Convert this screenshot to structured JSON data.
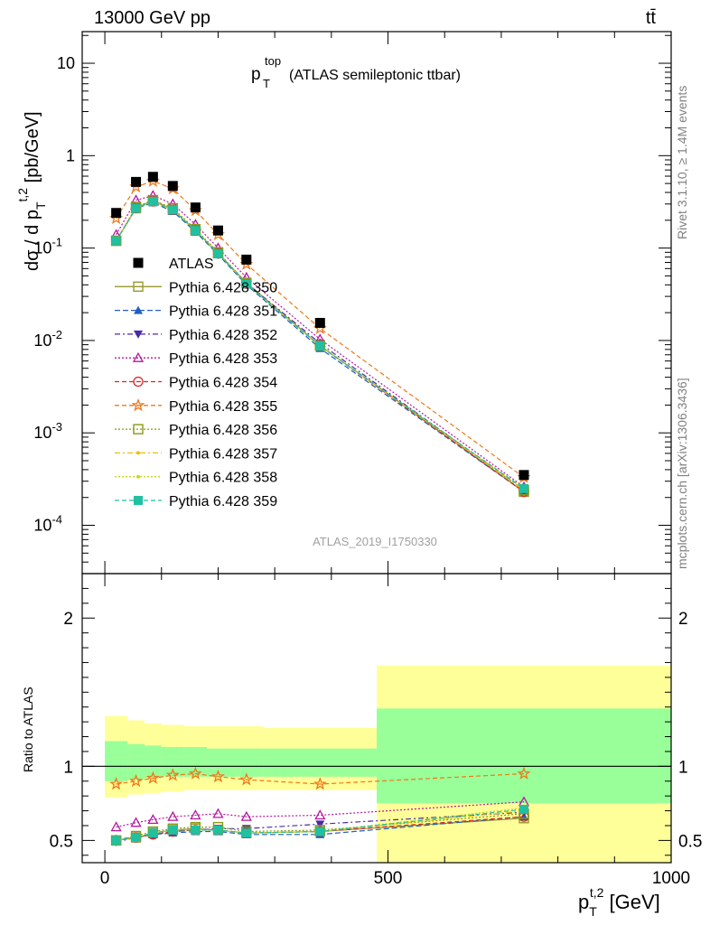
{
  "header": {
    "left": "13000 GeV pp",
    "right": "tt̄"
  },
  "side_labels": {
    "rivet": "Rivet 3.1.10, ≥ 1.4M events",
    "mcplots": "mcplots.cern.ch [arXiv:1306.3436]"
  },
  "analysis_id": "ATLAS_2019_I1750330",
  "colors": {
    "ratio_band_outer": "#ffff99",
    "ratio_band_inner": "#99ff99"
  },
  "chart_data": [
    {
      "type": "scatter",
      "name": "main",
      "title_main": "p",
      "title_sup": "top",
      "title_sub": "T",
      "title_rest": "(ATLAS semileptonic ttbar)",
      "ylabel": "dσ / d p_T^{t,2} [pb/GeV]",
      "yscale": "log",
      "ylim": [
        3e-05,
        22
      ],
      "xlim": [
        -40,
        1000
      ],
      "ytick_labels": [
        "10",
        "1",
        "10^-1",
        "10^-2",
        "10^-3",
        "10^-4"
      ],
      "legend_position": "upper-left",
      "x": [
        20,
        55,
        85,
        120,
        160,
        200,
        250,
        380,
        740
      ],
      "series": [
        {
          "name": "ATLAS",
          "color": "#000000",
          "marker": "square-filled",
          "dash": "",
          "values": [
            0.24,
            0.52,
            0.59,
            0.47,
            0.275,
            0.155,
            0.075,
            0.0155,
            0.00035
          ]
        },
        {
          "name": "Pythia 6.428 350",
          "color": "#999933",
          "marker": "square-open",
          "dash": "",
          "values": [
            0.12,
            0.27,
            0.33,
            0.26,
            0.155,
            0.088,
            0.042,
            0.0088,
            0.00023
          ]
        },
        {
          "name": "Pythia 6.428 351",
          "color": "#1f5fbf",
          "marker": "triangle-up-filled",
          "dash": "6,3",
          "values": [
            0.12,
            0.27,
            0.31,
            0.25,
            0.15,
            0.085,
            0.04,
            0.0082,
            0.00023
          ]
        },
        {
          "name": "Pythia 6.428 352",
          "color": "#4b2aa8",
          "marker": "triangle-down-filled",
          "dash": "6,3,2,3",
          "values": [
            0.12,
            0.27,
            0.32,
            0.26,
            0.155,
            0.088,
            0.042,
            0.0093,
            0.00024
          ]
        },
        {
          "name": "Pythia 6.428 353",
          "color": "#b5179e",
          "marker": "triangle-up-open",
          "dash": "2,2",
          "values": [
            0.14,
            0.33,
            0.37,
            0.3,
            0.18,
            0.1,
            0.048,
            0.0103,
            0.00026
          ]
        },
        {
          "name": "Pythia 6.428 354",
          "color": "#d62728",
          "marker": "circle-open",
          "dash": "5,3",
          "values": [
            0.12,
            0.27,
            0.32,
            0.26,
            0.155,
            0.087,
            0.041,
            0.0087,
            0.00023
          ]
        },
        {
          "name": "Pythia 6.428 355",
          "color": "#f07818",
          "marker": "star-open",
          "dash": "5,3",
          "values": [
            0.21,
            0.46,
            0.53,
            0.44,
            0.255,
            0.14,
            0.067,
            0.0135,
            0.00033
          ]
        },
        {
          "name": "Pythia 6.428 356",
          "color": "#8a9a10",
          "marker": "square-open",
          "dash": "2,2",
          "values": [
            0.12,
            0.28,
            0.33,
            0.27,
            0.16,
            0.09,
            0.042,
            0.0088,
            0.00024
          ]
        },
        {
          "name": "Pythia 6.428 357",
          "color": "#e8c010",
          "marker": "dot",
          "dash": "6,3,2,3",
          "values": [
            0.12,
            0.27,
            0.32,
            0.26,
            0.155,
            0.088,
            0.041,
            0.0087,
            0.00024
          ]
        },
        {
          "name": "Pythia 6.428 358",
          "color": "#c8d820",
          "marker": "dot",
          "dash": "2,2",
          "values": [
            0.12,
            0.27,
            0.32,
            0.26,
            0.155,
            0.088,
            0.041,
            0.0087,
            0.00025
          ]
        },
        {
          "name": "Pythia 6.428 359",
          "color": "#20c0a0",
          "marker": "square-filled",
          "dash": "5,3",
          "values": [
            0.12,
            0.27,
            0.32,
            0.26,
            0.155,
            0.087,
            0.041,
            0.0087,
            0.00025
          ]
        }
      ]
    },
    {
      "type": "line",
      "name": "ratio",
      "ylabel": "Ratio to ATLAS",
      "ylim": [
        0.35,
        2.3
      ],
      "xlim": [
        -40,
        1000
      ],
      "ytick_labels": [
        "2",
        "1",
        "0.5"
      ],
      "xtick_labels": [
        "0",
        "500",
        "1000"
      ],
      "xlabel": "p_T^{t,2} [GeV]",
      "x": [
        20,
        55,
        85,
        120,
        160,
        200,
        250,
        380,
        740
      ],
      "band": {
        "edges": [
          0,
          40,
          70,
          100,
          140,
          180,
          220,
          280,
          480,
          1000
        ],
        "outer_low": [
          0.79,
          0.81,
          0.82,
          0.83,
          0.84,
          0.84,
          0.84,
          0.84,
          0.35
        ],
        "outer_high": [
          1.34,
          1.31,
          1.29,
          1.28,
          1.27,
          1.27,
          1.27,
          1.26,
          1.68
        ],
        "inner_low": [
          0.9,
          0.91,
          0.92,
          0.93,
          0.93,
          0.93,
          0.93,
          0.93,
          0.75
        ],
        "inner_high": [
          1.17,
          1.15,
          1.14,
          1.13,
          1.13,
          1.12,
          1.12,
          1.12,
          1.39
        ]
      },
      "series": [
        {
          "name": "Pythia 6.428 350",
          "values": [
            0.5,
            0.52,
            0.55,
            0.57,
            0.58,
            0.57,
            0.55,
            0.56,
            0.65
          ]
        },
        {
          "name": "Pythia 6.428 351",
          "values": [
            0.51,
            0.52,
            0.54,
            0.55,
            0.56,
            0.56,
            0.54,
            0.54,
            0.66
          ]
        },
        {
          "name": "Pythia 6.428 352",
          "values": [
            0.49,
            0.52,
            0.54,
            0.56,
            0.57,
            0.58,
            0.58,
            0.61,
            0.69
          ]
        },
        {
          "name": "Pythia 6.428 353",
          "values": [
            0.59,
            0.62,
            0.64,
            0.66,
            0.67,
            0.68,
            0.66,
            0.67,
            0.76
          ]
        },
        {
          "name": "Pythia 6.428 354",
          "values": [
            0.5,
            0.52,
            0.54,
            0.56,
            0.57,
            0.57,
            0.55,
            0.56,
            0.66
          ]
        },
        {
          "name": "Pythia 6.428 355",
          "values": [
            0.88,
            0.9,
            0.92,
            0.94,
            0.95,
            0.93,
            0.91,
            0.88,
            0.95
          ]
        },
        {
          "name": "Pythia 6.428 356",
          "values": [
            0.5,
            0.53,
            0.56,
            0.58,
            0.59,
            0.59,
            0.56,
            0.57,
            0.68
          ]
        },
        {
          "name": "Pythia 6.428 357",
          "values": [
            0.5,
            0.52,
            0.55,
            0.57,
            0.57,
            0.57,
            0.55,
            0.56,
            0.7
          ]
        },
        {
          "name": "Pythia 6.428 358",
          "values": [
            0.5,
            0.52,
            0.55,
            0.57,
            0.57,
            0.57,
            0.55,
            0.56,
            0.72
          ]
        },
        {
          "name": "Pythia 6.428 359",
          "values": [
            0.5,
            0.52,
            0.55,
            0.57,
            0.57,
            0.57,
            0.55,
            0.56,
            0.71
          ]
        }
      ]
    }
  ]
}
